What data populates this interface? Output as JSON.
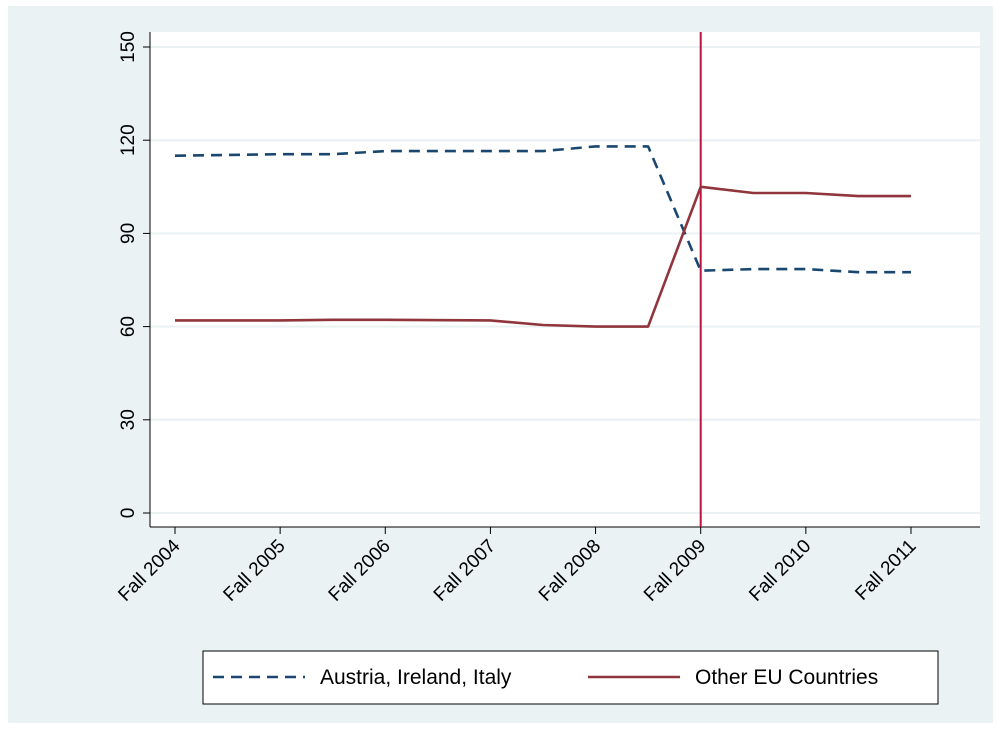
{
  "chart_data": {
    "type": "line",
    "x": [
      "Fall 2004",
      "Fall 2005",
      "Fall 2006",
      "Fall 2007",
      "Fall 2008",
      "Fall 2009",
      "Fall 2010",
      "Fall 2011"
    ],
    "y_ticks": [
      0,
      30,
      60,
      90,
      120,
      150
    ],
    "ylim": [
      -3,
      153
    ],
    "grid": true,
    "reference_line_x": "Fall 2009",
    "legend_position": "bottom",
    "colors": {
      "plot_region": "#eaf2f3",
      "plot_area": "#ffffff",
      "grid": "#eaf2f3",
      "reference_line": "#c0103b"
    },
    "series": [
      {
        "name": "Austria, Ireland, Italy",
        "color": "#1a476f",
        "style": "dashed",
        "points": [
          {
            "x": 0,
            "y": 115
          },
          {
            "x": 1,
            "y": 115.5
          },
          {
            "x": 1.5,
            "y": 115.5
          },
          {
            "x": 2,
            "y": 116.5
          },
          {
            "x": 3,
            "y": 116.5
          },
          {
            "x": 3.5,
            "y": 116.5
          },
          {
            "x": 4,
            "y": 118
          },
          {
            "x": 4.5,
            "y": 118
          },
          {
            "x": 5,
            "y": 78
          },
          {
            "x": 5.5,
            "y": 78.5
          },
          {
            "x": 6,
            "y": 78.5
          },
          {
            "x": 6.5,
            "y": 77.5
          },
          {
            "x": 7,
            "y": 77.5
          }
        ]
      },
      {
        "name": "Other EU Countries",
        "color": "#90353b",
        "style": "solid",
        "points": [
          {
            "x": 0,
            "y": 62
          },
          {
            "x": 1,
            "y": 62
          },
          {
            "x": 1.5,
            "y": 62.2
          },
          {
            "x": 2,
            "y": 62.2
          },
          {
            "x": 3,
            "y": 62
          },
          {
            "x": 3.5,
            "y": 60.5
          },
          {
            "x": 4,
            "y": 60
          },
          {
            "x": 4.5,
            "y": 60
          },
          {
            "x": 5,
            "y": 105
          },
          {
            "x": 5.5,
            "y": 103
          },
          {
            "x": 6,
            "y": 103
          },
          {
            "x": 6.5,
            "y": 102
          },
          {
            "x": 7,
            "y": 102
          }
        ]
      }
    ]
  }
}
